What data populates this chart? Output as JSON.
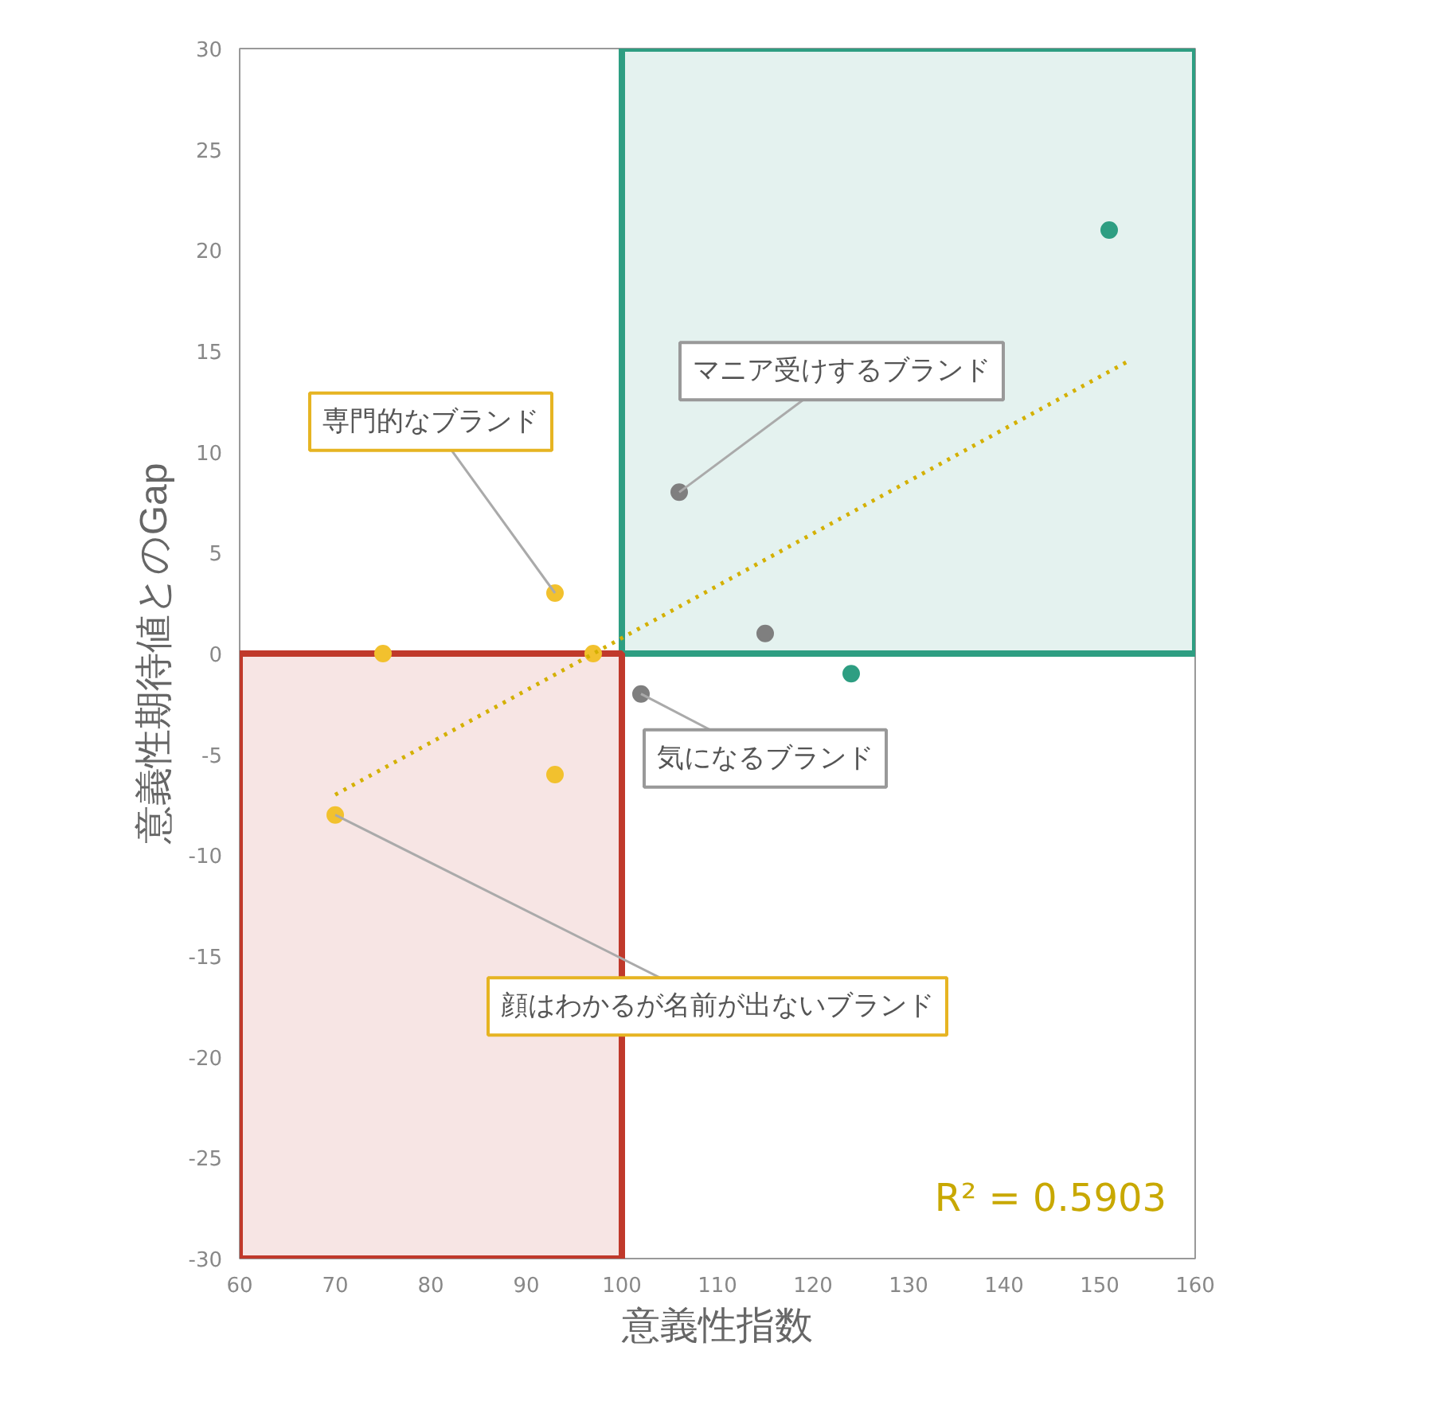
{
  "chart_data": {
    "type": "scatter",
    "xlabel": "意義性指数",
    "ylabel": "意義性期待値とのGap",
    "xlim": [
      60,
      160
    ],
    "xticks": [
      60,
      70,
      80,
      90,
      100,
      110,
      120,
      130,
      140,
      150,
      160
    ],
    "ylim": [
      -30,
      30
    ],
    "yticks": [
      -30,
      -25,
      -20,
      -15,
      -10,
      -5,
      0,
      5,
      10,
      15,
      20,
      25,
      30
    ],
    "grid": false,
    "marker": "circle",
    "series": [
      {
        "type": "area",
        "marker": "none",
        "color": "#2e9e82",
        "x": [
          100,
          160
        ],
        "values": [
          30,
          30
        ]
      },
      {
        "type": "area",
        "marker": "none",
        "color": "#c0392b",
        "x": [
          60,
          100
        ],
        "values": [
          -30,
          -30
        ]
      },
      {
        "color": "#f2c12e",
        "x": [
          75,
          93,
          97,
          93,
          70
        ],
        "values": [
          0,
          3,
          0,
          -6,
          -8
        ]
      },
      {
        "color": "#7f7f7f",
        "x": [
          106,
          115,
          102
        ],
        "values": [
          8,
          1,
          -2
        ]
      },
      {
        "color": "#2e9e82",
        "x": [
          124,
          151
        ],
        "values": [
          -1,
          21
        ]
      },
      {
        "type": "line",
        "color": "#d4b000",
        "line_style": "dotted",
        "marker": "none",
        "x": [
          70,
          153
        ],
        "values": [
          -7,
          14.5
        ]
      }
    ],
    "annotations": [
      {
        "text": "専門的なブランド",
        "x": 93,
        "y": 3
      },
      {
        "text": "マニア受けするブランド",
        "x": 106,
        "y": 8
      },
      {
        "text": "気になるブランド",
        "x": 102,
        "y": -2
      },
      {
        "text": "顔はわかるが名前が出ないブランド",
        "x": 70,
        "y": -8
      },
      "R² = 0.5903"
    ]
  }
}
